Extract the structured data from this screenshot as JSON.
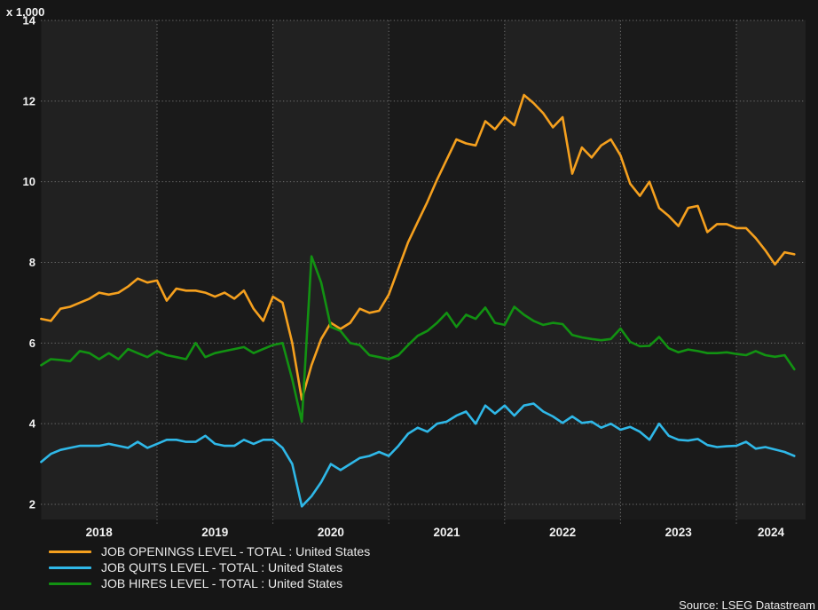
{
  "chart": {
    "unit_label": "x 1,000",
    "source": "Source: LSEG Datastream"
  },
  "colors": {
    "background": "#161616",
    "band_even_year": "#212121",
    "band_odd_year": "#1a1a1a",
    "gridline": "#6e6e6e",
    "tick_text": "#f2f2f2",
    "openings_orange": "#f5a01e",
    "quits_blue": "#2fb8e8",
    "hires_green": "#129212"
  },
  "chart_data": {
    "type": "line",
    "title": "",
    "frequency": "monthly",
    "x_start": "2018-01",
    "x_end": "2024-07",
    "x_tick_labels": [
      "2018",
      "2019",
      "2020",
      "2021",
      "2022",
      "2023",
      "2024"
    ],
    "y_tick_labels": [
      "2",
      "4",
      "6",
      "8",
      "10",
      "12",
      "14"
    ],
    "y_ticks": [
      2,
      4,
      6,
      8,
      10,
      12,
      14
    ],
    "ylim": [
      2,
      14
    ],
    "y_unit": "x 1,000",
    "grid": "dotted",
    "plot_bands": "alternating shaded vertical bands per calendar year",
    "legend_position": "bottom-left",
    "series": [
      {
        "name": "JOB OPENINGS LEVEL - TOTAL : United States",
        "color": "#f5a01e",
        "values": [
          6.6,
          6.55,
          6.85,
          6.9,
          7.0,
          7.1,
          7.25,
          7.2,
          7.25,
          7.4,
          7.6,
          7.5,
          7.55,
          7.05,
          7.35,
          7.3,
          7.3,
          7.25,
          7.15,
          7.25,
          7.1,
          7.3,
          6.85,
          6.55,
          7.15,
          7.0,
          6.0,
          4.6,
          5.45,
          6.1,
          6.5,
          6.35,
          6.5,
          6.85,
          6.75,
          6.8,
          7.2,
          7.85,
          8.5,
          9.0,
          9.5,
          10.05,
          10.55,
          11.05,
          10.95,
          10.9,
          11.5,
          11.3,
          11.6,
          11.4,
          12.15,
          11.95,
          11.7,
          11.35,
          11.6,
          10.2,
          10.85,
          10.6,
          10.9,
          11.05,
          10.65,
          9.95,
          9.65,
          10.0,
          9.35,
          9.15,
          8.9,
          9.35,
          9.4,
          8.75,
          8.95,
          8.95,
          8.85,
          8.85,
          8.6,
          8.3,
          7.95,
          8.25,
          8.2
        ]
      },
      {
        "name": "JOB QUITS LEVEL - TOTAL : United States",
        "color": "#2fb8e8",
        "values": [
          3.05,
          3.25,
          3.35,
          3.4,
          3.45,
          3.45,
          3.45,
          3.5,
          3.45,
          3.4,
          3.55,
          3.4,
          3.5,
          3.6,
          3.6,
          3.55,
          3.55,
          3.7,
          3.5,
          3.45,
          3.45,
          3.6,
          3.5,
          3.6,
          3.6,
          3.4,
          3.0,
          1.95,
          2.2,
          2.55,
          3.0,
          2.85,
          3.0,
          3.15,
          3.2,
          3.3,
          3.2,
          3.45,
          3.75,
          3.9,
          3.8,
          4.0,
          4.05,
          4.2,
          4.3,
          4.0,
          4.45,
          4.25,
          4.45,
          4.2,
          4.45,
          4.5,
          4.3,
          4.18,
          4.02,
          4.18,
          4.02,
          4.05,
          3.9,
          4.0,
          3.85,
          3.92,
          3.8,
          3.6,
          4.0,
          3.7,
          3.6,
          3.58,
          3.62,
          3.47,
          3.42,
          3.44,
          3.45,
          3.55,
          3.38,
          3.42,
          3.36,
          3.3,
          3.2
        ]
      },
      {
        "name": "JOB HIRES LEVEL - TOTAL : United States",
        "color": "#129212",
        "values": [
          5.45,
          5.6,
          5.58,
          5.55,
          5.8,
          5.75,
          5.6,
          5.75,
          5.6,
          5.85,
          5.75,
          5.65,
          5.8,
          5.7,
          5.65,
          5.6,
          6.0,
          5.65,
          5.75,
          5.8,
          5.85,
          5.9,
          5.75,
          5.85,
          5.95,
          6.0,
          5.1,
          4.05,
          8.15,
          7.5,
          6.4,
          6.3,
          6.0,
          5.95,
          5.7,
          5.65,
          5.6,
          5.7,
          5.95,
          6.18,
          6.3,
          6.5,
          6.75,
          6.4,
          6.7,
          6.6,
          6.88,
          6.5,
          6.45,
          6.9,
          6.7,
          6.55,
          6.45,
          6.5,
          6.47,
          6.2,
          6.14,
          6.1,
          6.07,
          6.1,
          6.36,
          6.03,
          5.92,
          5.93,
          6.15,
          5.87,
          5.77,
          5.84,
          5.8,
          5.75,
          5.75,
          5.77,
          5.73,
          5.7,
          5.8,
          5.7,
          5.66,
          5.7,
          5.35
        ]
      }
    ]
  }
}
